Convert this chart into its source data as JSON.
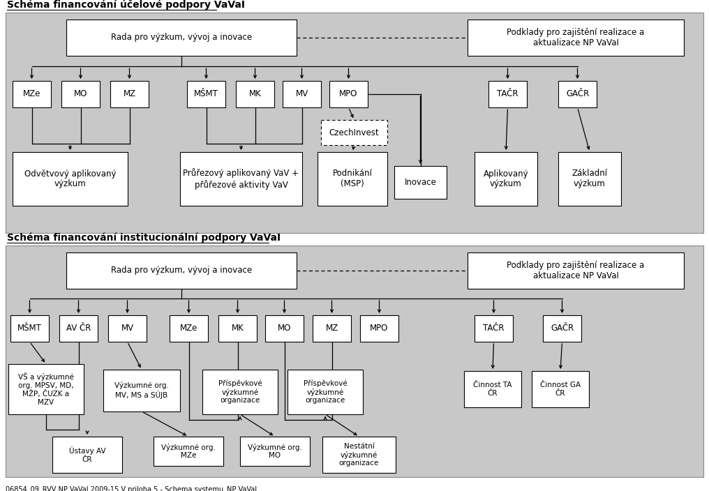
{
  "title1": "Schéma financování účelové podpory VaVaI",
  "title2": "Schéma financování institucionální podpory VaVaI",
  "footer": "06854_09_RVV NP VaVaI 2009-15 V priloha 5 - Schema systemu_NP VaVaI",
  "panel_gray": "#c8c8c8",
  "box_white": "#ffffff",
  "box_edge": "#000000",
  "bg": "#ffffff"
}
